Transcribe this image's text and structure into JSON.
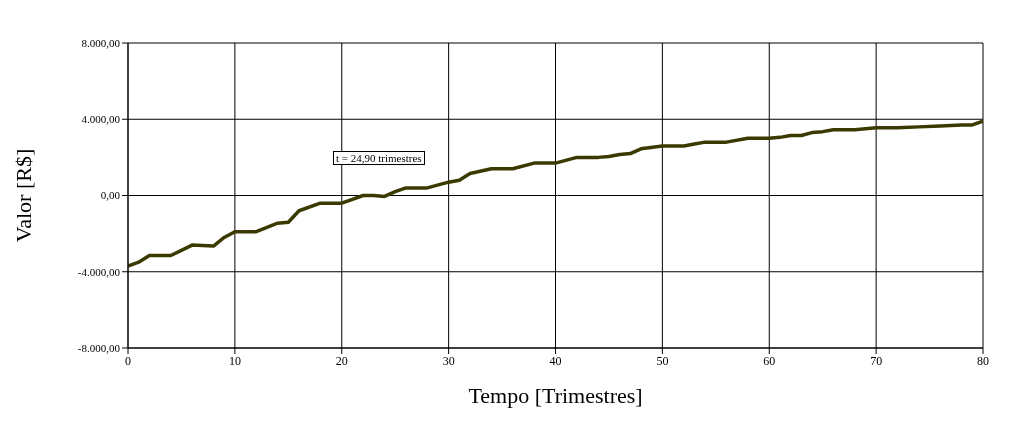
{
  "chart_data": {
    "type": "line",
    "xlabel": "Tempo [Trimestres]",
    "ylabel": "Valor [R$]",
    "annotations": [
      "t = 24,90 trimestres"
    ],
    "x": [
      0,
      1,
      2,
      4,
      6,
      8,
      9,
      10,
      12,
      14,
      15,
      16,
      18,
      20,
      21,
      22,
      23,
      24,
      25,
      26,
      28,
      30,
      31,
      32,
      34,
      36,
      38,
      40,
      42,
      44,
      45,
      46,
      47,
      48,
      50,
      52,
      53,
      54,
      56,
      58,
      60,
      61,
      62,
      63,
      64,
      65,
      66,
      68,
      70,
      72,
      74,
      76,
      78,
      79,
      80
    ],
    "series": [
      {
        "color": "#3a3a00",
        "values": [
          -3700,
          -3500,
          -3150,
          -3150,
          -2600,
          -2650,
          -2200,
          -1900,
          -1900,
          -1450,
          -1400,
          -800,
          -400,
          -400,
          -200,
          0,
          0,
          -50,
          200,
          400,
          400,
          700,
          800,
          1150,
          1400,
          1400,
          1700,
          1700,
          2000,
          2000,
          2050,
          2150,
          2200,
          2450,
          2600,
          2600,
          2700,
          2800,
          2800,
          3000,
          3000,
          3050,
          3150,
          3150,
          3300,
          3350,
          3450,
          3450,
          3550,
          3550,
          3600,
          3650,
          3700,
          3700,
          3900
        ]
      }
    ],
    "xlim": [
      0,
      80
    ],
    "xticks": [
      0,
      10,
      20,
      30,
      40,
      50,
      60,
      70,
      80
    ],
    "ylim": [
      -8000,
      8000
    ],
    "yticks": [
      {
        "value": -8000,
        "label": "-8.000,00"
      },
      {
        "value": -4000,
        "label": "-4.000,00"
      },
      {
        "value": 0,
        "label": "0,00"
      },
      {
        "value": 4000,
        "label": "4.000,00"
      },
      {
        "value": 8000,
        "label": "8.000,00"
      }
    ],
    "grid": true,
    "marker": "none",
    "line_style": "solid"
  }
}
